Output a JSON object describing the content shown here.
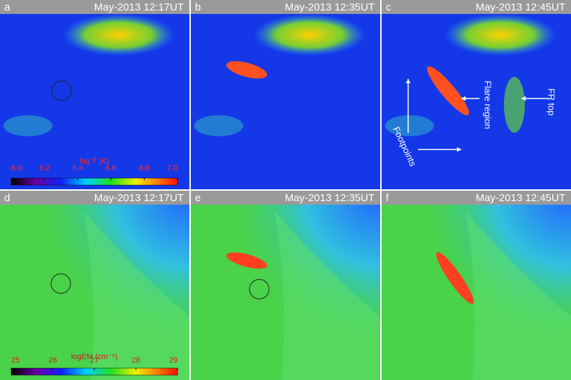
{
  "panels": [
    {
      "label": "a",
      "title": "May-2013 12:17UT"
    },
    {
      "label": "b",
      "title": "May-2013 12:35UT"
    },
    {
      "label": "c",
      "title": "May-2013 12:45UT"
    },
    {
      "label": "d",
      "title": "May-2013 12:17UT"
    },
    {
      "label": "e",
      "title": "May-2013 12:35UT"
    },
    {
      "label": "f",
      "title": "May-2013 12:45UT"
    }
  ],
  "colorbars": [
    {
      "title": "log T (K)",
      "ticks": [
        {
          "value": 6.0,
          "label": "6.0"
        },
        {
          "value": 6.2,
          "label": "6.2"
        },
        {
          "value": 6.4,
          "label": "6.4"
        },
        {
          "value": 6.6,
          "label": "6.6"
        },
        {
          "value": 6.8,
          "label": "6.8"
        },
        {
          "value": 7.0,
          "label": "7.0"
        }
      ]
    },
    {
      "title": "logEM (cm⁻⁵)",
      "ticks": [
        25,
        26,
        27,
        28,
        29
      ]
    }
  ],
  "annotations": {
    "flare_region": "Flare region",
    "fr_top": "FR top",
    "footpoints": "Footpoints"
  }
}
